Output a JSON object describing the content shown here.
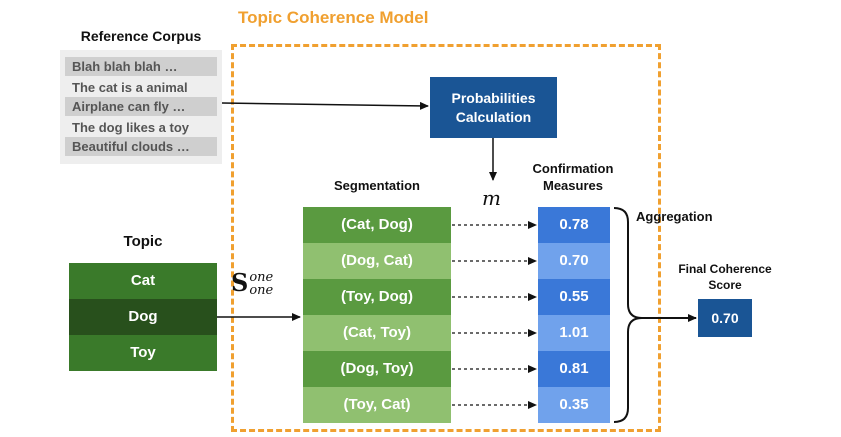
{
  "model_title": "Topic Coherence Model",
  "reference_corpus": {
    "title": "Reference Corpus",
    "lines": [
      "Blah blah blah …",
      "The cat is a animal",
      "Airplane can fly …",
      "The dog likes a toy",
      "Beautiful clouds …"
    ]
  },
  "probabilities_box": {
    "line1": "Probabilities",
    "line2": "Calculation"
  },
  "m_label": "m",
  "topic": {
    "title": "Topic",
    "words": [
      "Cat",
      "Dog",
      "Toy"
    ]
  },
  "s_label": {
    "main": "S",
    "sup": "one",
    "sub": "one"
  },
  "segmentation": {
    "title": "Segmentation",
    "pairs": [
      "(Cat, Dog)",
      "(Dog, Cat)",
      "(Toy, Dog)",
      "(Cat, Toy)",
      "(Dog, Toy)",
      "(Toy, Cat)"
    ]
  },
  "confirmation": {
    "title_line1": "Confirmation",
    "title_line2": "Measures",
    "values": [
      "0.78",
      "0.70",
      "0.55",
      "1.01",
      "0.81",
      "0.35"
    ]
  },
  "aggregation_label": "Aggregation",
  "final": {
    "title_line1": "Final Coherence",
    "title_line2": "Score",
    "value": "0.70"
  },
  "colors": {
    "orange": "#f0a030",
    "navy": "#1a5595",
    "green_dark": "#5a9a40",
    "green_light": "#90c070",
    "topic_green": "#3a7a2a",
    "topic_green_dark": "#28501c",
    "blue_dark": "#3a78d8",
    "blue_light": "#70a2ec"
  }
}
